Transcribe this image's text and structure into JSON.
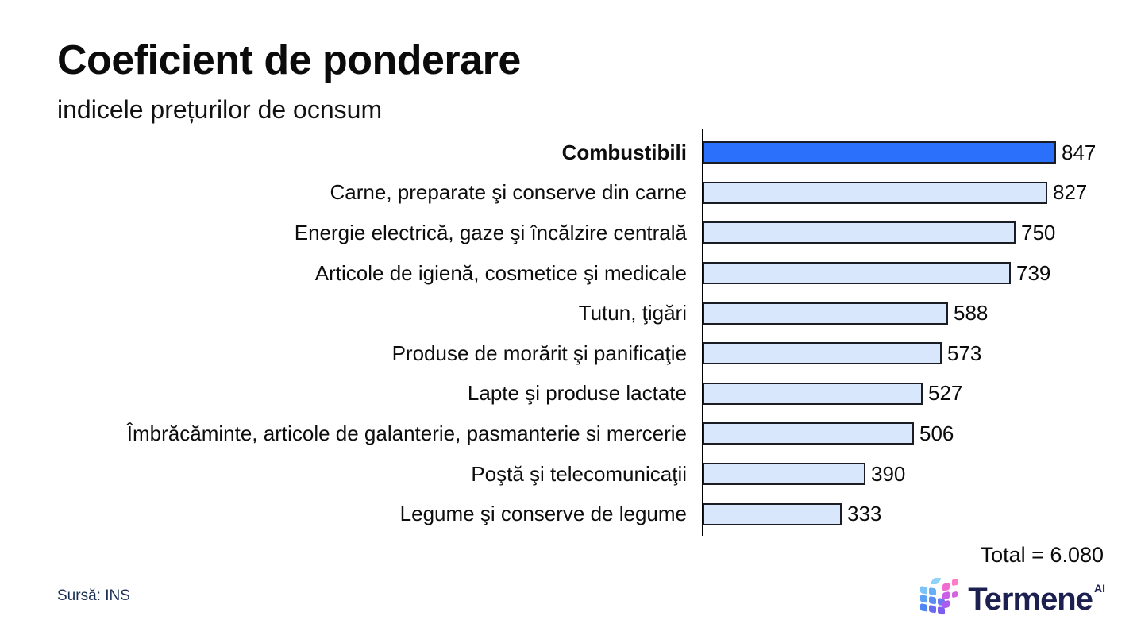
{
  "title": "Coeficient de ponderare",
  "subtitle": "indicele prețurilor de ocnsum",
  "source_label": "Sursă: INS",
  "total_label": "Total = 6.080",
  "logo": {
    "brand": "Termene",
    "superscript": "AI",
    "icon": "cube-grid-icon"
  },
  "chart_data": {
    "type": "bar",
    "orientation": "horizontal",
    "title": "Coeficient de ponderare",
    "subtitle": "indicele prețurilor de ocnsum",
    "categories": [
      "Combustibili",
      "Carne, preparate şi conserve din carne",
      "Energie electrică, gaze şi încălzire centrală",
      "Articole de igienă, cosmetice şi medicale",
      "Tutun, ţigări",
      "Produse de morărit şi panificaţie",
      "Lapte şi produse lactate",
      "Îmbrăcăminte, articole de galanterie, pasmanterie si mercerie",
      "Poştă şi telecomunicaţii",
      "Legume şi conserve de legume"
    ],
    "values": [
      847,
      827,
      750,
      739,
      588,
      573,
      527,
      506,
      390,
      333
    ],
    "total": "6.080",
    "highlight_index": 0,
    "highlight_category": "Combustibili",
    "bar_color_highlight": "#2b70fa",
    "bar_color_default": "#d9e7fc",
    "bar_border_color": "#1a1d24",
    "value_label_position": "end-of-bar",
    "legend": "none",
    "grid": false,
    "baseline_visible": true,
    "source": "INS"
  }
}
